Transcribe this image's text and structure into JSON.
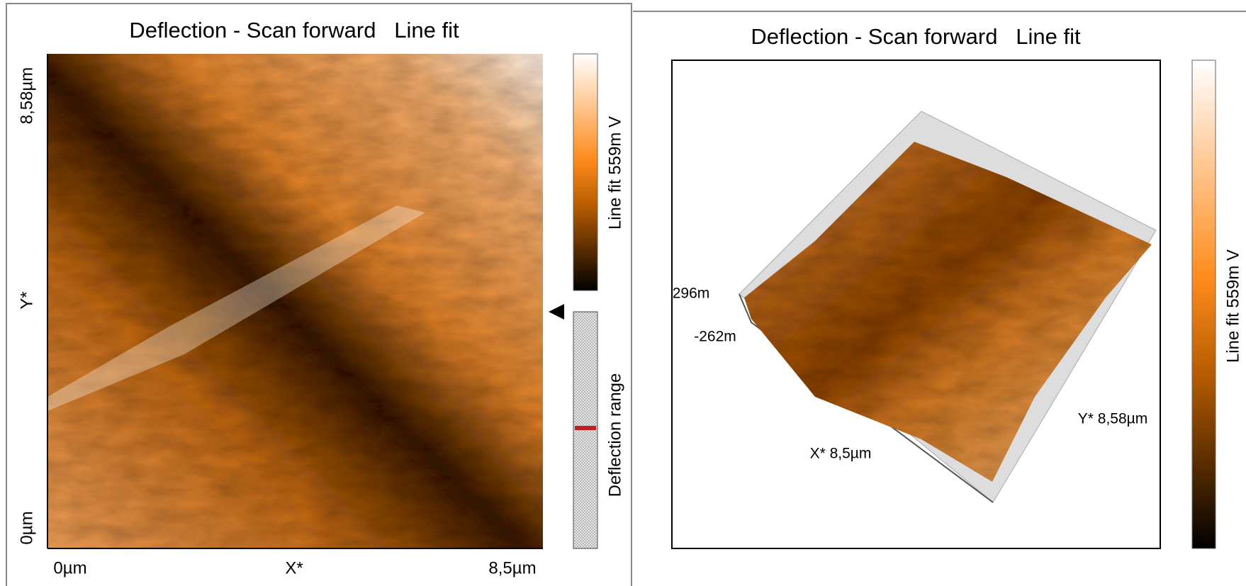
{
  "left_panel": {
    "title": "Deflection - Scan forward   Line fit",
    "y_axis": {
      "top": "8,58µm",
      "middle": "Y*",
      "bottom": "0µm"
    },
    "x_axis": {
      "left": "0µm",
      "middle": "X*",
      "right": "8,5µm"
    },
    "colorbar_label": "Line fit 559m V",
    "range_label": "Deflection range"
  },
  "right_panel": {
    "title": "Deflection - Scan forward   Line fit",
    "z_top": "296m",
    "z_bottom": "-262m",
    "x_label": "X* 8,5µm",
    "y_label": "Y* 8,58µm",
    "colorbar_label": "Line fit 559m V"
  }
}
